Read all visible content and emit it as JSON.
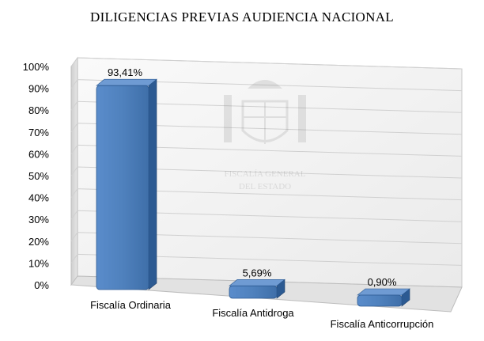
{
  "chart_data": {
    "type": "bar",
    "title": "DILIGENCIAS PREVIAS AUDIENCIA NACIONAL",
    "categories": [
      "Fiscalía Ordinaria",
      "Fiscalía Antidroga",
      "Fiscalía Anticorrupción"
    ],
    "values": [
      93.41,
      5.69,
      0.9
    ],
    "data_labels": [
      "93,41%",
      "5,69%",
      "0,90%"
    ],
    "y_ticks": [
      "0%",
      "10%",
      "20%",
      "30%",
      "40%",
      "50%",
      "60%",
      "70%",
      "80%",
      "90%",
      "100%"
    ],
    "ylim": [
      0,
      100
    ],
    "grid": true,
    "legend": "none",
    "watermark_text": [
      "FISCALÍA GENERAL",
      "DEL ESTADO"
    ],
    "colors": {
      "bar_front": "#4f81bd",
      "bar_side": "#2c5a92",
      "bar_top": "#6f9bd3",
      "wall": "#f4f4f4",
      "grid": "#d0d0d0"
    }
  }
}
